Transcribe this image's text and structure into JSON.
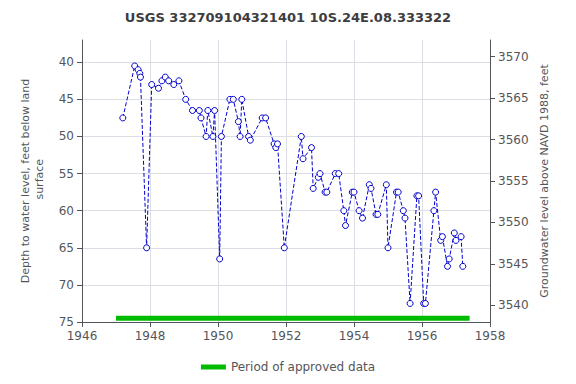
{
  "chart_data": {
    "type": "line",
    "title": "USGS 332709104321401 10S.24E.08.333322",
    "ylabel": "Depth to water level, feet below land\n surface",
    "y2label": "Groundwater level above NAVD 1988, feet",
    "xlim": [
      1946,
      1958
    ],
    "xticks": [
      1946,
      1948,
      1950,
      1952,
      1954,
      1956,
      1958
    ],
    "ylim": [
      75,
      37
    ],
    "yticks": [
      40,
      45,
      50,
      55,
      60,
      65,
      70,
      75
    ],
    "y2lim": [
      3538,
      3572
    ],
    "y2ticks": [
      3540,
      3545,
      3550,
      3555,
      3560,
      3565,
      3570
    ],
    "grid": true,
    "legend": "bottom",
    "series": [
      {
        "type": "line",
        "color": "#0000cc",
        "line_style": "dashed",
        "marker": "circle",
        "x": [
          1947.2,
          1947.55,
          1947.65,
          1947.7,
          1947.72,
          1947.9,
          1948.05,
          1948.25,
          1948.35,
          1948.45,
          1948.55,
          1948.7,
          1948.85,
          1949.05,
          1949.25,
          1949.45,
          1949.5,
          1949.65,
          1949.7,
          1949.85,
          1949.9,
          1950.05,
          1950.1,
          1950.35,
          1950.45,
          1950.6,
          1950.65,
          1950.7,
          1950.9,
          1950.95,
          1951.3,
          1951.4,
          1951.65,
          1951.7,
          1951.75,
          1951.95,
          1952.45,
          1952.5,
          1952.75,
          1952.8,
          1952.95,
          1953.0,
          1953.15,
          1953.2,
          1953.45,
          1953.55,
          1953.7,
          1953.75,
          1953.95,
          1954.0,
          1954.15,
          1954.25,
          1954.45,
          1954.5,
          1954.65,
          1954.7,
          1954.95,
          1955.0,
          1955.25,
          1955.3,
          1955.45,
          1955.5,
          1955.65,
          1955.85,
          1955.9,
          1956.05,
          1956.1,
          1956.35,
          1956.4,
          1956.55,
          1956.6,
          1956.75,
          1956.8,
          1956.95,
          1957.0,
          1957.15,
          1957.2
        ],
        "values": [
          47.5,
          40.5,
          41.0,
          41.5,
          42.0,
          65.0,
          43.0,
          43.5,
          42.5,
          42.0,
          42.5,
          43.0,
          42.5,
          45.0,
          46.5,
          46.5,
          47.5,
          50.0,
          46.5,
          50.0,
          46.5,
          66.5,
          50.0,
          45.0,
          45.0,
          48.0,
          50.0,
          45.0,
          50.0,
          50.5,
          47.5,
          47.5,
          51.0,
          51.5,
          51.0,
          65.0,
          50.0,
          53.0,
          51.5,
          57.0,
          55.5,
          55.0,
          57.5,
          57.5,
          55.0,
          55.0,
          60.0,
          62.0,
          57.5,
          57.5,
          60.0,
          61.0,
          56.5,
          57.0,
          60.5,
          60.5,
          56.5,
          65.0,
          57.5,
          57.5,
          60.0,
          61.0,
          72.5,
          58.0,
          58.0,
          72.5,
          72.5,
          60.0,
          57.5,
          64.0,
          63.5,
          67.5,
          66.5,
          63.0,
          64.0,
          63.5,
          67.5
        ]
      },
      {
        "name": "Period of approved data",
        "type": "line",
        "color": "#00bb00",
        "line_style": "solid",
        "x": [
          1947.0,
          1957.4
        ],
        "values": [
          74.5,
          74.5
        ]
      }
    ]
  }
}
